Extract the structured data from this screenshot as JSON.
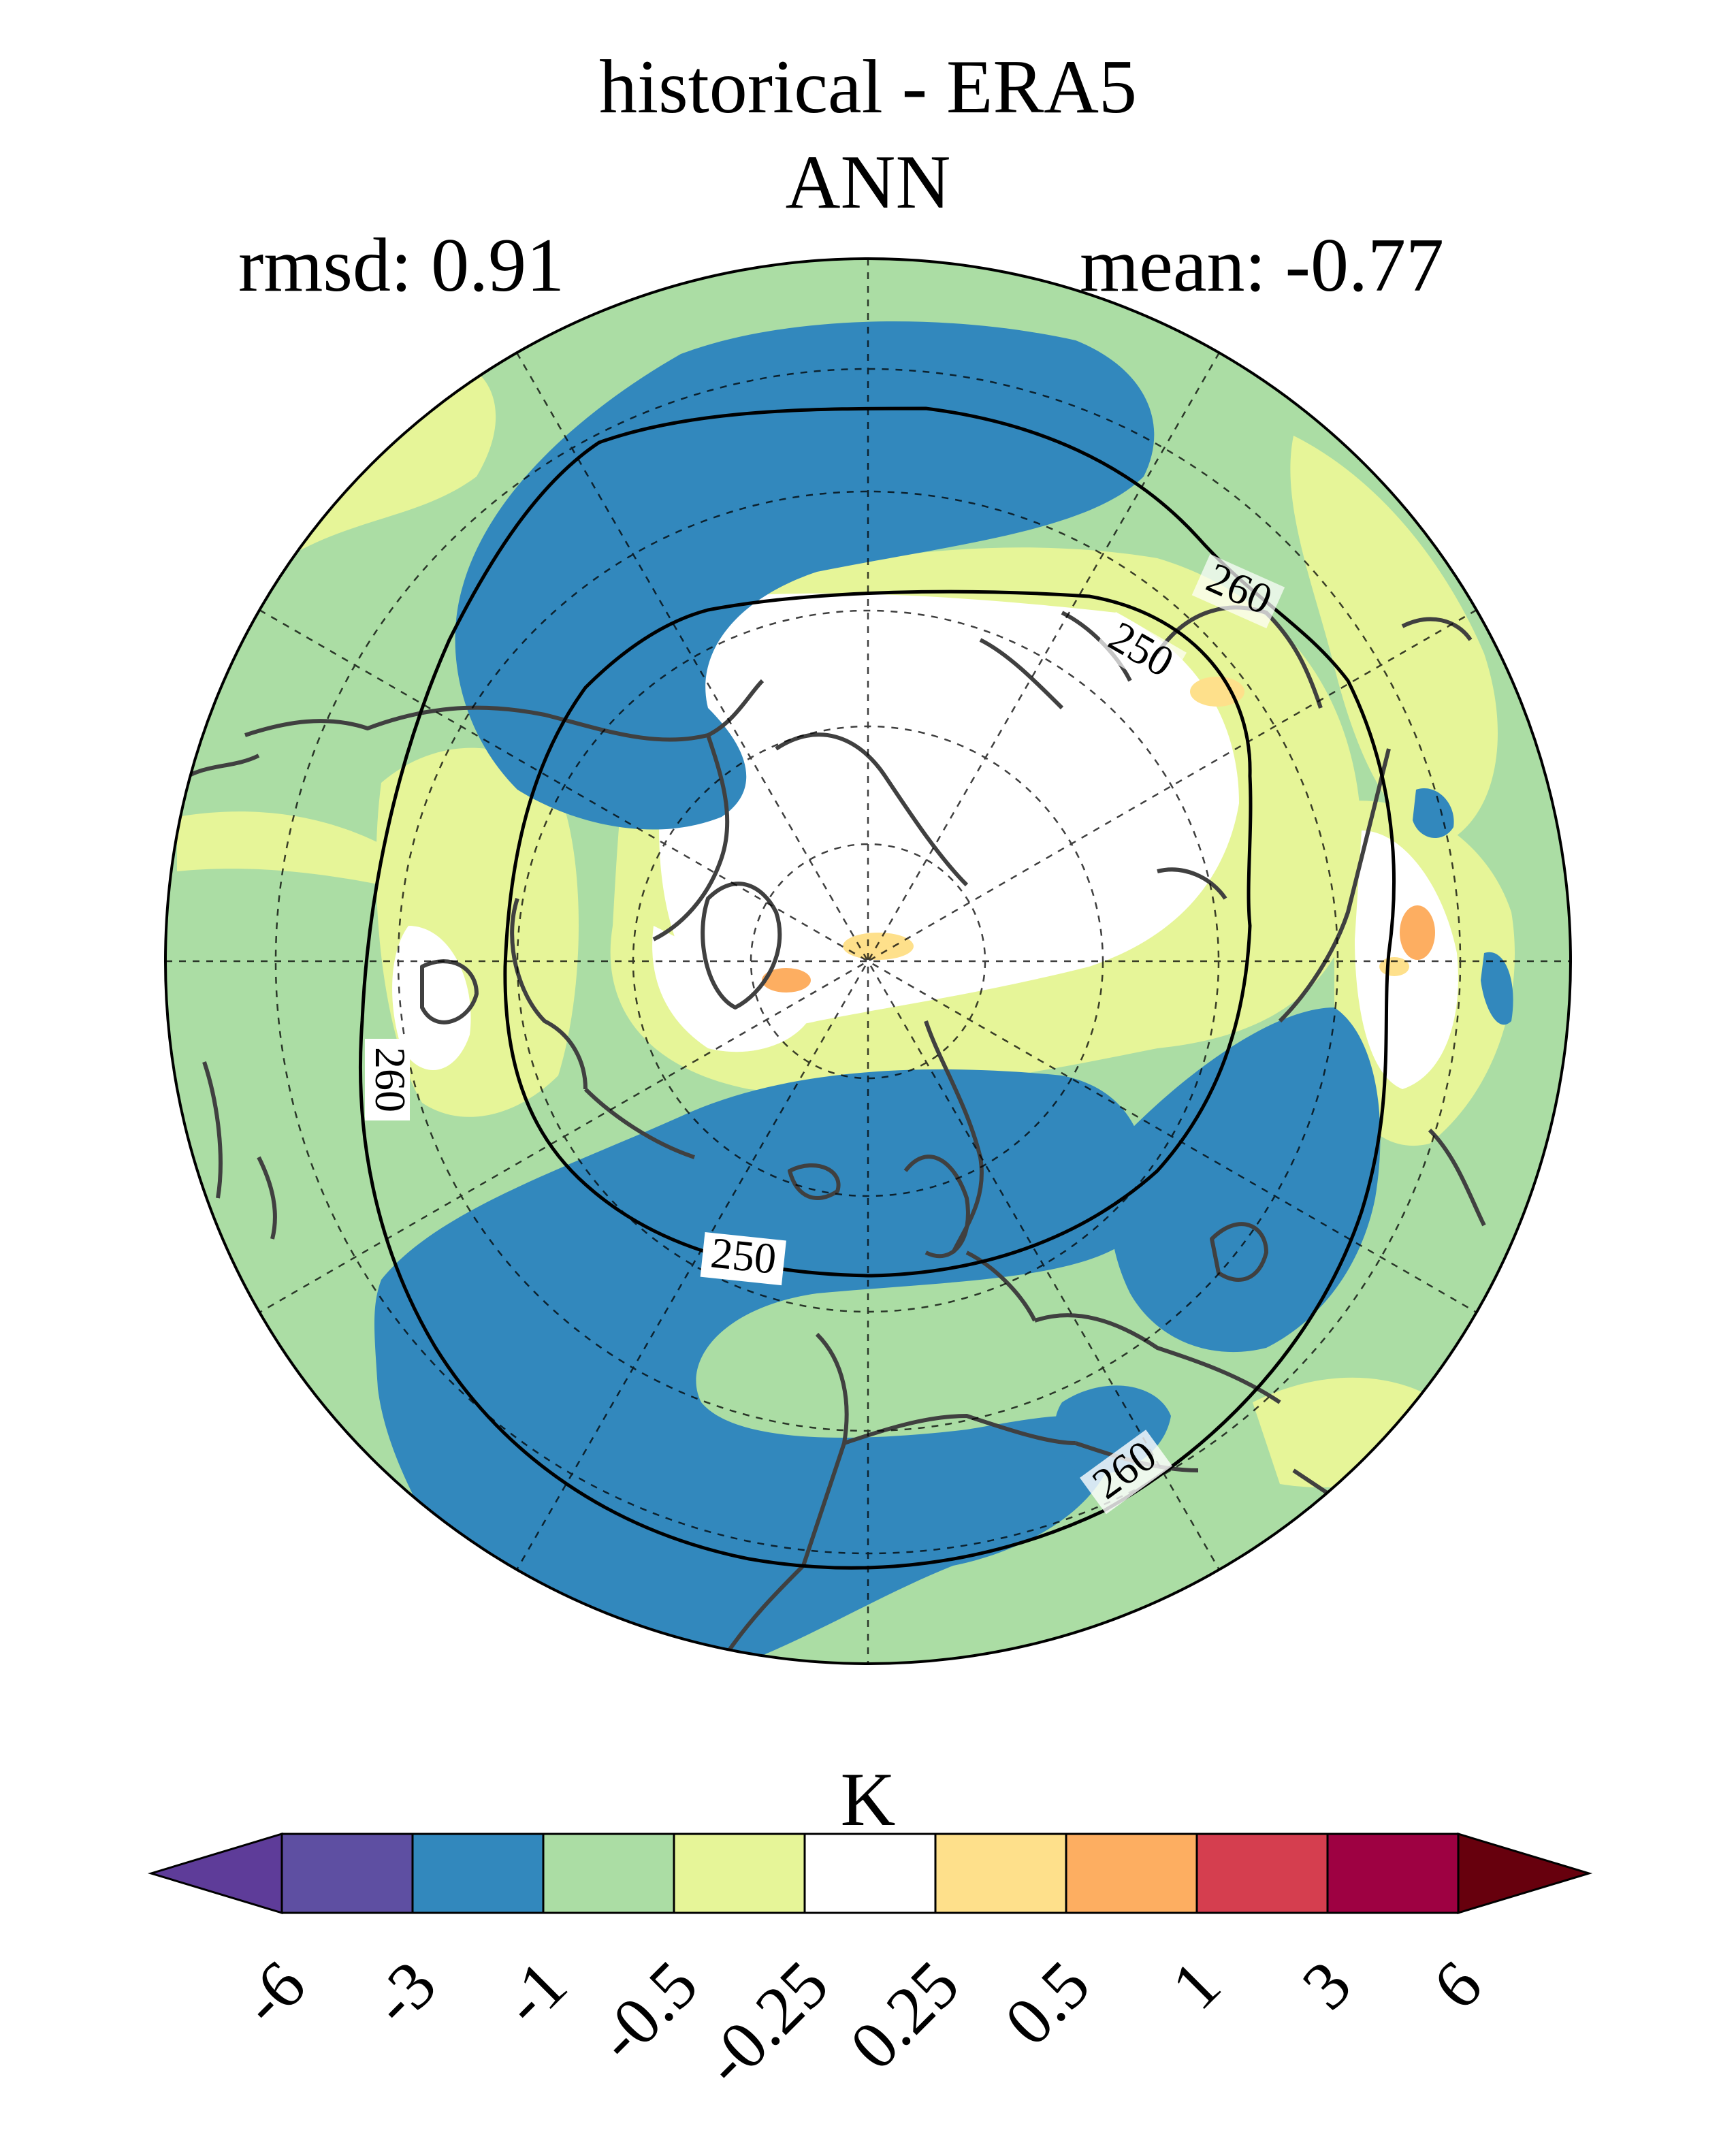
{
  "title": "historical - ERA5",
  "subtitle": "ANN",
  "stats": {
    "rmsd": "rmsd: 0.91",
    "mean": "mean: -0.77"
  },
  "colorbar": {
    "units": "K",
    "tick_labels": [
      "-6",
      "-3",
      "-1",
      "-0.5",
      "-0.25",
      "0.25",
      "0.5",
      "1",
      "3",
      "6"
    ],
    "colors": [
      "#5e3c99",
      "#5e4fa2",
      "#3288bd",
      "#abdda4",
      "#e6f598",
      "#ffffff",
      "#fee08b",
      "#fdae61",
      "#d53e4f",
      "#9e0142",
      "#67000d"
    ]
  },
  "contour_labels": [
    "260",
    "250",
    "250",
    "260",
    "260"
  ],
  "map_colors": {
    "blue": "#3288bd",
    "green": "#abdda4",
    "yellow": "#e6f598",
    "white": "#ffffff",
    "lightorange": "#fee08b",
    "orange": "#fdae61",
    "coast": "#404040"
  }
}
